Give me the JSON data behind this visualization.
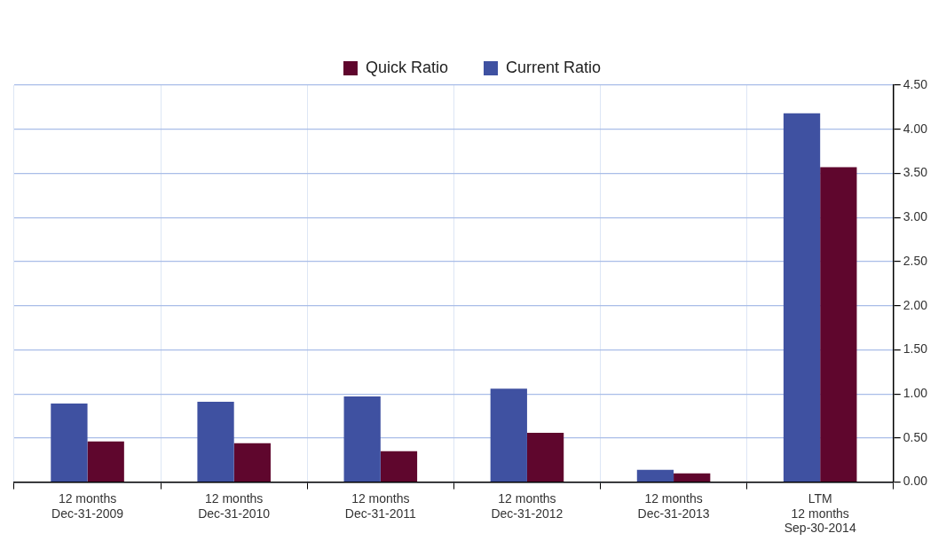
{
  "chart_data": {
    "type": "bar",
    "categories": [
      "12 months\nDec-31-2009",
      "12 months\nDec-31-2010",
      "12 months\nDec-31-2011",
      "12 months\nDec-31-2012",
      "12 months\nDec-31-2013",
      "LTM\n12 months\nSep-30-2014"
    ],
    "series": [
      {
        "name": "Current Ratio",
        "color": "#3f51a1",
        "values": [
          0.89,
          0.91,
          0.97,
          1.06,
          0.14,
          4.18
        ]
      },
      {
        "name": "Quick Ratio",
        "color": "#5f062d",
        "values": [
          0.46,
          0.44,
          0.35,
          0.56,
          0.1,
          3.57
        ]
      }
    ],
    "ylim": [
      0,
      4.5
    ],
    "yticks": [
      {
        "value": 0,
        "label": "0.00"
      },
      {
        "value": 0.5,
        "label": "0.50"
      },
      {
        "value": 1,
        "label": "1.00"
      },
      {
        "value": 1.5,
        "label": "1.50"
      },
      {
        "value": 2,
        "label": "2.00"
      },
      {
        "value": 2.5,
        "label": "2.50"
      },
      {
        "value": 3,
        "label": "3.00"
      },
      {
        "value": 3.5,
        "label": "3.50"
      },
      {
        "value": 4,
        "label": "4.00"
      },
      {
        "value": 4.5,
        "label": "4.50"
      }
    ],
    "grid": true,
    "legend": "top"
  }
}
